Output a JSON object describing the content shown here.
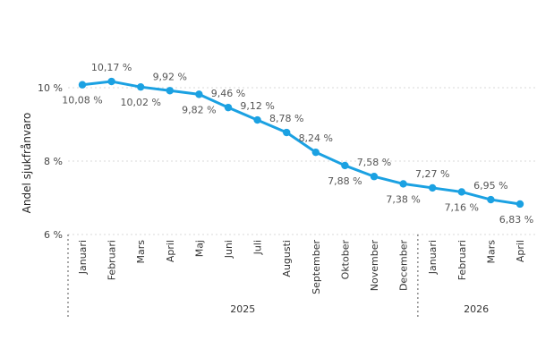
{
  "chart_data": {
    "type": "line",
    "ylabel": "Andel sjukfrånvaro",
    "ylim": [
      6,
      10.5
    ],
    "yticks": [
      {
        "value": 10,
        "label": "10 %"
      },
      {
        "value": 8,
        "label": "8 %"
      },
      {
        "value": 6,
        "label": "6 %"
      }
    ],
    "grid": true,
    "color": "#1ba1e2",
    "months": [
      "Januari",
      "Februari",
      "Mars",
      "April",
      "Maj",
      "Juni",
      "Juli",
      "Augusti",
      "September",
      "Oktober",
      "November",
      "December",
      "Januari",
      "Februari",
      "Mars",
      "April"
    ],
    "years": [
      {
        "label": "2025",
        "span": 12
      },
      {
        "label": "2026",
        "span": 4
      }
    ],
    "values": [
      10.08,
      10.17,
      10.02,
      9.92,
      9.82,
      9.46,
      9.12,
      8.78,
      8.24,
      7.88,
      7.58,
      7.38,
      7.27,
      7.16,
      6.95,
      6.83
    ],
    "value_labels": [
      "10,08 %",
      "10,17 %",
      "10,02 %",
      "9,92 %",
      "9,82 %",
      "9,46 %",
      "9,12 %",
      "8,78 %",
      "8,24 %",
      "7,88 %",
      "7,58 %",
      "7,38 %",
      "7,27 %",
      "7,16 %",
      "6,95 %",
      "6,83 %"
    ],
    "label_positions": [
      "below",
      "above",
      "below",
      "above",
      "below",
      "above",
      "above",
      "above",
      "above",
      "below",
      "above",
      "below",
      "above",
      "below",
      "above",
      "below"
    ]
  }
}
